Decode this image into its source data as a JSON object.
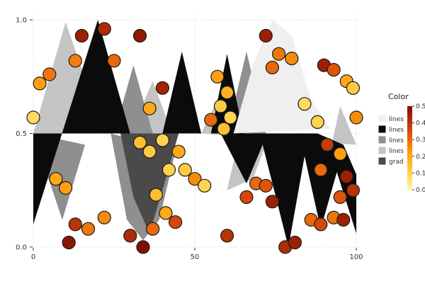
{
  "chart_data": {
    "type": "scatter",
    "title": "",
    "xlabel": "",
    "ylabel": "",
    "xlim": [
      0,
      100
    ],
    "ylim": [
      0,
      1
    ],
    "xticks": [
      "0",
      "50",
      "100"
    ],
    "xtick_values": [
      0,
      50,
      100
    ],
    "yticks": [
      "0.0",
      "0.5",
      "1.0"
    ],
    "ytick_values": [
      0.0,
      0.5,
      1.0
    ],
    "grid": true,
    "grid_color": "#cccccc",
    "background": "#ffffff",
    "colormap": [
      [
        0,
        "#fff3ae"
      ],
      [
        0.2,
        "#ffd34e"
      ],
      [
        0.45,
        "#ff9d0a"
      ],
      [
        0.7,
        "#d7470b"
      ],
      [
        1,
        "#7e0e00"
      ]
    ],
    "legend": {
      "title": "Color",
      "colorbar": {
        "min": 0.0,
        "max": 0.5,
        "ticks": [
          "0.5",
          "0.4",
          "0.3",
          "0.2",
          "0.1",
          "0.0"
        ],
        "tick_values": [
          0.5,
          0.4,
          0.3,
          0.2,
          0.1,
          0.0
        ]
      },
      "entries": [
        {
          "label": "lines",
          "color": "#efefef"
        },
        {
          "label": "lines",
          "color": "#0b0b0b"
        },
        {
          "label": "lines",
          "color": "#8f8f8f"
        },
        {
          "label": "lines",
          "color": "#c4c4c4"
        },
        {
          "label": "grad",
          "color": "#4a4a4a"
        }
      ]
    },
    "areas": [
      {
        "legend": "lines",
        "color": "#c4c4c4",
        "points": [
          [
            0,
            0.5
          ],
          [
            10,
            0.99
          ],
          [
            22,
            0.5
          ]
        ]
      },
      {
        "legend": "lines",
        "color": "#c4c4c4",
        "points": [
          [
            30,
            0.5
          ],
          [
            37,
            0.73
          ],
          [
            43,
            0.5
          ],
          [
            47,
            0.7
          ],
          [
            52,
            0.5
          ]
        ]
      },
      {
        "legend": "lines",
        "color": "#c4c4c4",
        "points": [
          [
            52,
            0.5
          ],
          [
            58,
            0.68
          ],
          [
            64,
            0.5
          ],
          [
            60,
            0.25
          ],
          [
            68,
            0.3
          ],
          [
            72,
            0.45
          ],
          [
            78,
            0.22
          ],
          [
            85,
            0.5
          ],
          [
            90,
            0.3
          ],
          [
            95,
            0.62
          ],
          [
            100,
            0.45
          ]
        ]
      },
      {
        "legend": "lines",
        "color": "#8f8f8f",
        "points": [
          [
            0,
            0.5
          ],
          [
            9,
            0.12
          ],
          [
            16,
            0.45
          ]
        ]
      },
      {
        "legend": "lines",
        "color": "#8f8f8f",
        "points": [
          [
            25,
            0.5
          ],
          [
            31,
            0.8
          ],
          [
            37,
            0.5
          ]
        ]
      },
      {
        "legend": "lines",
        "color": "#8f8f8f",
        "points": [
          [
            24,
            0.5
          ],
          [
            29,
            0.12
          ],
          [
            34,
            0.03
          ],
          [
            39,
            0.12
          ],
          [
            44,
            0.42
          ]
        ]
      },
      {
        "legend": "lines",
        "color": "#8f8f8f",
        "points": [
          [
            60,
            0.5
          ],
          [
            66,
            0.86
          ],
          [
            72,
            0.5
          ]
        ]
      },
      {
        "legend": "grad",
        "color": "#4a4a4a",
        "points": [
          [
            27,
            0.5
          ],
          [
            31,
            0.22
          ],
          [
            36,
            0.06
          ],
          [
            41,
            0.3
          ],
          [
            45,
            0.5
          ]
        ]
      },
      {
        "legend": "lines",
        "color": "#0b0b0b",
        "points": [
          [
            0,
            0.1
          ],
          [
            20,
            1.0
          ],
          [
            30,
            0.5
          ],
          [
            0,
            0.5
          ]
        ]
      },
      {
        "legend": "lines",
        "color": "#0b0b0b",
        "points": [
          [
            40,
            0.5
          ],
          [
            46,
            0.86
          ],
          [
            52,
            0.5
          ]
        ]
      },
      {
        "legend": "lines",
        "color": "#0b0b0b",
        "points": [
          [
            55,
            0.5
          ],
          [
            60,
            0.85
          ],
          [
            65,
            0.5
          ]
        ]
      },
      {
        "legend": "lines",
        "color": "#0b0b0b",
        "points": [
          [
            58,
            0.5
          ],
          [
            66,
            0.28
          ],
          [
            71,
            0.45
          ],
          [
            79,
            0.0
          ],
          [
            84,
            0.4
          ],
          [
            89,
            0.08
          ],
          [
            94,
            0.33
          ],
          [
            100,
            0.06
          ],
          [
            100,
            0.32
          ],
          [
            96,
            0.45
          ],
          [
            88,
            0.5
          ]
        ]
      },
      {
        "legend": "lines",
        "color": "#efefef",
        "points": [
          [
            62,
            0.5
          ],
          [
            68,
            0.8
          ],
          [
            74,
            1.0
          ],
          [
            80,
            0.93
          ],
          [
            86,
            0.65
          ],
          [
            92,
            0.52
          ]
        ]
      }
    ],
    "points": [
      [
        0,
        0.57,
        0.08
      ],
      [
        2,
        0.72,
        0.22
      ],
      [
        5,
        0.76,
        0.28
      ],
      [
        13,
        0.82,
        0.27
      ],
      [
        15,
        0.93,
        0.45
      ],
      [
        22,
        0.96,
        0.42
      ],
      [
        33,
        0.93,
        0.47
      ],
      [
        25,
        0.82,
        0.3
      ],
      [
        40,
        0.7,
        0.44
      ],
      [
        36,
        0.61,
        0.2
      ],
      [
        57,
        0.75,
        0.22
      ],
      [
        60,
        0.68,
        0.18
      ],
      [
        58,
        0.62,
        0.12
      ],
      [
        61,
        0.57,
        0.1
      ],
      [
        55,
        0.56,
        0.3
      ],
      [
        59,
        0.52,
        0.15
      ],
      [
        72,
        0.93,
        0.45
      ],
      [
        76,
        0.85,
        0.28
      ],
      [
        80,
        0.83,
        0.25
      ],
      [
        74,
        0.79,
        0.3
      ],
      [
        90,
        0.8,
        0.45
      ],
      [
        93,
        0.78,
        0.33
      ],
      [
        97,
        0.73,
        0.2
      ],
      [
        99,
        0.7,
        0.12
      ],
      [
        84,
        0.63,
        0.08
      ],
      [
        88,
        0.55,
        0.1
      ],
      [
        100,
        0.57,
        0.25
      ],
      [
        91,
        0.45,
        0.38
      ],
      [
        95,
        0.41,
        0.22
      ],
      [
        89,
        0.34,
        0.3
      ],
      [
        97,
        0.31,
        0.45
      ],
      [
        7,
        0.3,
        0.2
      ],
      [
        10,
        0.26,
        0.22
      ],
      [
        13,
        0.1,
        0.4
      ],
      [
        17,
        0.08,
        0.28
      ],
      [
        11,
        0.02,
        0.48
      ],
      [
        22,
        0.13,
        0.25
      ],
      [
        30,
        0.05,
        0.42
      ],
      [
        34,
        0.0,
        0.5
      ],
      [
        37,
        0.08,
        0.3
      ],
      [
        41,
        0.15,
        0.2
      ],
      [
        44,
        0.11,
        0.35
      ],
      [
        38,
        0.23,
        0.15
      ],
      [
        42,
        0.34,
        0.1
      ],
      [
        36,
        0.42,
        0.12
      ],
      [
        33,
        0.46,
        0.15
      ],
      [
        40,
        0.47,
        0.1
      ],
      [
        45,
        0.42,
        0.2
      ],
      [
        47,
        0.34,
        0.12
      ],
      [
        50,
        0.3,
        0.25
      ],
      [
        53,
        0.27,
        0.1
      ],
      [
        60,
        0.05,
        0.4
      ],
      [
        66,
        0.22,
        0.35
      ],
      [
        69,
        0.28,
        0.3
      ],
      [
        72,
        0.27,
        0.33
      ],
      [
        74,
        0.2,
        0.45
      ],
      [
        78,
        0.0,
        0.42
      ],
      [
        81,
        0.02,
        0.45
      ],
      [
        86,
        0.12,
        0.3
      ],
      [
        89,
        0.1,
        0.35
      ],
      [
        93,
        0.13,
        0.28
      ],
      [
        96,
        0.12,
        0.45
      ],
      [
        99,
        0.25,
        0.4
      ],
      [
        95,
        0.22,
        0.33
      ]
    ],
    "point_style": {
      "radius": 9,
      "stroke": "#1a1a1a",
      "stroke_width": 1.2
    }
  }
}
